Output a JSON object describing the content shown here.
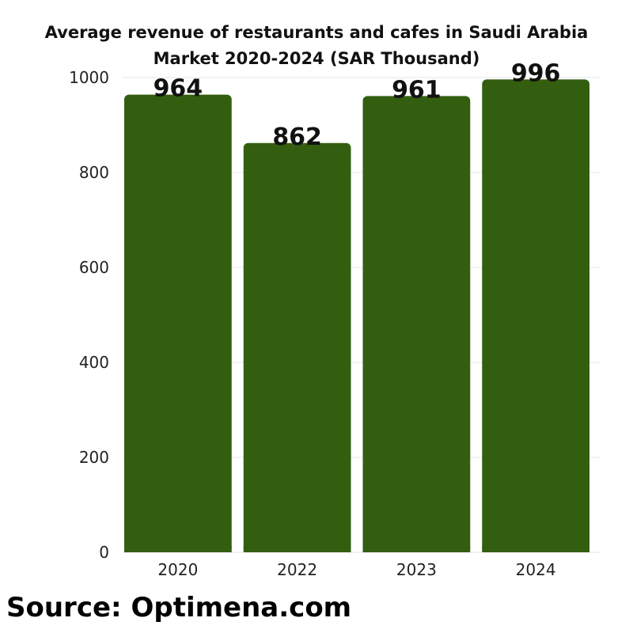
{
  "chart_data": {
    "type": "bar",
    "title_line1": "Average revenue of restaurants and cafes in Saudi Arabia",
    "title_line2": "Market 2020-2024 (SAR Thousand)",
    "categories": [
      "2020",
      "2022",
      "2023",
      "2024"
    ],
    "values": [
      964,
      862,
      961,
      996
    ],
    "data_labels": [
      "964",
      "862",
      "961",
      "996"
    ],
    "ylim": [
      0,
      1000
    ],
    "yticks": [
      0,
      200,
      400,
      600,
      800,
      1000
    ],
    "ytick_labels": [
      "0",
      "200",
      "400",
      "600",
      "800",
      "1000"
    ],
    "xlabel": "",
    "ylabel": "",
    "grid": true,
    "legend": "none",
    "bar_color": "#335e10"
  },
  "source": "Source: Optimena.com"
}
